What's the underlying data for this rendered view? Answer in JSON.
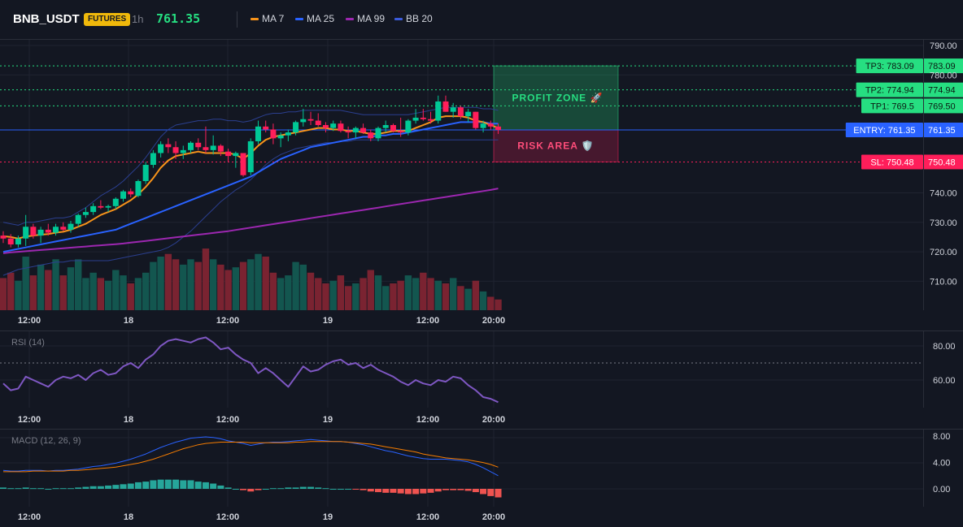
{
  "header": {
    "symbol": "BNB_USDT",
    "badge": "FUTURES",
    "timeframe": "1h",
    "price": "761.35",
    "legend": [
      {
        "label": "MA 7",
        "color": "#f7931a"
      },
      {
        "label": "MA 25",
        "color": "#2962ff"
      },
      {
        "label": "MA 99",
        "color": "#9c27b0"
      },
      {
        "label": "BB 20",
        "color": "#1e3a8a"
      }
    ]
  },
  "colors": {
    "up": "#00c896",
    "down": "#ff1e5a",
    "vol_up": "#13564f",
    "vol_down": "#7a2331",
    "rsi": "#7e57c2",
    "macd": "#2962ff",
    "signal": "#f57c00",
    "hist_up": "#26a69a",
    "hist_down": "#ef5350",
    "tp": "#26de81",
    "entry": "#2962ff",
    "sl": "#ff1e5a"
  },
  "chart_data": [
    {
      "type": "candlestick",
      "title": "",
      "x_ticks": [
        "12:00",
        "18",
        "12:00",
        "19",
        "12:00",
        "20:00"
      ],
      "y_ticks": [
        "790.00",
        "780.00",
        "740.00",
        "730.00",
        "720.00",
        "710.00"
      ],
      "ylim": [
        700,
        790
      ],
      "candles": [
        [
          725.5,
          727.0,
          723.0,
          724.5
        ],
        [
          724.5,
          726.0,
          721.5,
          722.5
        ],
        [
          722.5,
          725.5,
          721.5,
          724.5
        ],
        [
          724.5,
          732.5,
          722.0,
          728.5
        ],
        [
          728.5,
          729.5,
          724.5,
          725.5
        ],
        [
          725.5,
          728.5,
          723.0,
          727.5
        ],
        [
          727.5,
          729.5,
          725.5,
          726.5
        ],
        [
          726.5,
          729.5,
          725.5,
          728.5
        ],
        [
          728.5,
          730.0,
          727.0,
          727.5
        ],
        [
          727.5,
          730.5,
          726.5,
          729.5
        ],
        [
          729.5,
          733.0,
          728.5,
          732.5
        ],
        [
          732.5,
          735.0,
          731.5,
          733.5
        ],
        [
          733.5,
          736.5,
          732.5,
          735.5
        ],
        [
          735.5,
          737.5,
          734.5,
          735.0
        ],
        [
          735.0,
          736.0,
          733.5,
          735.5
        ],
        [
          735.5,
          738.5,
          734.5,
          738.0
        ],
        [
          738.0,
          741.0,
          737.0,
          740.5
        ],
        [
          740.5,
          741.5,
          738.5,
          739.5
        ],
        [
          739.0,
          744.5,
          738.5,
          744.0
        ],
        [
          744.0,
          750.5,
          743.0,
          749.5
        ],
        [
          749.5,
          754.5,
          748.5,
          753.5
        ],
        [
          753.5,
          757.5,
          752.0,
          756.5
        ],
        [
          756.5,
          758.5,
          753.5,
          755.5
        ],
        [
          755.5,
          757.5,
          751.5,
          753.5
        ],
        [
          753.5,
          756.0,
          751.5,
          754.5
        ],
        [
          754.5,
          757.5,
          753.5,
          757.0
        ],
        [
          757.0,
          758.5,
          754.5,
          755.5
        ],
        [
          755.5,
          762.5,
          753.5,
          754.5
        ],
        [
          754.5,
          759.5,
          753.0,
          756.0
        ],
        [
          756.0,
          756.5,
          752.5,
          754.0
        ],
        [
          754.0,
          755.0,
          750.5,
          752.5
        ],
        [
          752.5,
          754.0,
          748.5,
          753.5
        ],
        [
          753.5,
          753.5,
          745.5,
          746.0
        ],
        [
          747.0,
          758.5,
          746.0,
          757.5
        ],
        [
          757.5,
          764.5,
          756.5,
          762.5
        ],
        [
          762.5,
          764.5,
          760.5,
          761.5
        ],
        [
          761.5,
          763.5,
          756.5,
          758.5
        ],
        [
          758.5,
          760.5,
          755.5,
          759.5
        ],
        [
          759.5,
          761.5,
          757.5,
          760.5
        ],
        [
          760.5,
          764.5,
          759.5,
          764.0
        ],
        [
          764.0,
          768.5,
          762.5,
          765.0
        ],
        [
          765.0,
          767.5,
          763.0,
          764.5
        ],
        [
          764.5,
          767.0,
          762.5,
          763.0
        ],
        [
          763.0,
          764.0,
          760.5,
          762.0
        ],
        [
          762.0,
          764.5,
          761.0,
          763.5
        ],
        [
          763.5,
          764.5,
          760.5,
          761.0
        ],
        [
          761.0,
          762.5,
          758.5,
          760.5
        ],
        [
          760.5,
          762.5,
          758.5,
          762.0
        ],
        [
          762.0,
          763.5,
          760.0,
          760.5
        ],
        [
          760.5,
          761.5,
          757.5,
          758.5
        ],
        [
          758.5,
          762.5,
          757.5,
          762.0
        ],
        [
          762.0,
          764.5,
          760.5,
          763.0
        ],
        [
          763.0,
          763.5,
          760.5,
          761.0
        ],
        [
          761.0,
          765.5,
          759.0,
          760.5
        ],
        [
          760.5,
          765.0,
          759.5,
          764.5
        ],
        [
          764.5,
          768.5,
          763.5,
          765.5
        ],
        [
          765.5,
          768.5,
          764.5,
          765.0
        ],
        [
          765.0,
          767.5,
          763.5,
          764.5
        ],
        [
          764.5,
          773.0,
          763.5,
          771.0
        ],
        [
          771.0,
          773.0,
          767.5,
          767.5
        ],
        [
          767.5,
          770.5,
          765.5,
          769.0
        ],
        [
          769.0,
          769.5,
          765.0,
          766.0
        ],
        [
          766.0,
          768.5,
          764.0,
          767.5
        ],
        [
          767.5,
          767.5,
          761.5,
          762.0
        ],
        [
          762.0,
          764.5,
          760.5,
          763.5
        ],
        [
          763.5,
          764.5,
          761.5,
          762.5
        ],
        [
          762.5,
          763.5,
          760.0,
          761.35
        ]
      ],
      "ma7": [
        725.3,
        725.0,
        724.5,
        725.2,
        725.5,
        725.8,
        726.0,
        726.5,
        726.8,
        727.5,
        728.5,
        729.5,
        731.0,
        732.5,
        733.5,
        734.5,
        736.0,
        737.5,
        739.5,
        742.0,
        745.0,
        748.5,
        751.0,
        752.5,
        753.0,
        753.5,
        754.0,
        753.5,
        753.5,
        753.5,
        753.5,
        753.0,
        751.5,
        753.5,
        756.0,
        758.0,
        759.0,
        759.5,
        760.0,
        760.5,
        761.0,
        761.5,
        762.0,
        762.0,
        761.5,
        761.5,
        761.0,
        761.0,
        760.5,
        760.0,
        760.0,
        760.5,
        761.0,
        761.0,
        761.0,
        762.0,
        763.0,
        764.0,
        765.5,
        766.0,
        766.0,
        766.0,
        765.5,
        764.5,
        764.0,
        763.0,
        762.0
      ],
      "ma25": [
        720.0,
        720.5,
        721.0,
        721.5,
        722.0,
        722.5,
        723.0,
        723.5,
        724.0,
        724.5,
        725.0,
        725.5,
        726.0,
        726.5,
        727.0,
        727.5,
        728.5,
        729.5,
        730.5,
        731.5,
        732.5,
        733.5,
        734.5,
        735.5,
        736.5,
        737.5,
        738.5,
        739.5,
        740.5,
        741.5,
        742.5,
        743.5,
        744.5,
        745.5,
        747.0,
        748.5,
        750.0,
        751.5,
        752.5,
        753.5,
        754.5,
        755.5,
        756.0,
        756.5,
        757.0,
        757.5,
        758.0,
        758.5,
        759.0,
        759.0,
        759.5,
        759.5,
        760.0,
        760.0,
        760.5,
        761.0,
        761.5,
        762.0,
        762.5,
        763.0,
        763.5,
        764.0,
        764.0,
        764.0,
        764.0,
        763.5,
        763.5
      ],
      "ma99": [
        719.5,
        719.8,
        720.0,
        720.2,
        720.4,
        720.6,
        720.8,
        721.0,
        721.2,
        721.4,
        721.6,
        721.8,
        722.0,
        722.2,
        722.4,
        722.6,
        722.8,
        723.1,
        723.4,
        723.7,
        724.0,
        724.3,
        724.6,
        724.9,
        725.2,
        725.5,
        725.8,
        726.1,
        726.4,
        726.7,
        727.0,
        727.4,
        727.8,
        728.2,
        728.6,
        729.0,
        729.4,
        729.8,
        730.2,
        730.6,
        731.0,
        731.4,
        731.8,
        732.2,
        732.6,
        733.0,
        733.4,
        733.8,
        734.2,
        734.6,
        735.0,
        735.4,
        735.8,
        736.2,
        736.6,
        737.0,
        737.4,
        737.8,
        738.2,
        738.6,
        739.0,
        739.4,
        739.8,
        740.2,
        740.6,
        741.0,
        741.5
      ],
      "bb_upper": [
        730.0,
        729.5,
        729.0,
        730.0,
        730.0,
        730.5,
        731.0,
        731.5,
        731.5,
        732.0,
        733.5,
        735.0,
        737.0,
        739.0,
        740.5,
        742.0,
        744.0,
        746.5,
        749.0,
        752.0,
        755.5,
        759.0,
        761.5,
        763.0,
        763.5,
        764.0,
        764.5,
        764.5,
        765.0,
        765.0,
        764.5,
        764.5,
        764.0,
        764.5,
        765.5,
        766.5,
        767.0,
        767.0,
        767.5,
        767.5,
        768.0,
        768.0,
        768.0,
        768.0,
        768.0,
        768.0,
        767.5,
        767.0,
        766.5,
        766.5,
        766.5,
        766.5,
        766.5,
        766.5,
        766.5,
        767.0,
        767.5,
        768.0,
        768.5,
        769.0,
        769.0,
        769.0,
        769.0,
        769.0,
        768.5,
        768.5,
        768.0
      ],
      "bb_lower": [
        712.0,
        713.0,
        714.0,
        714.5,
        715.0,
        715.5,
        716.0,
        716.5,
        716.5,
        717.0,
        717.0,
        717.0,
        717.0,
        717.0,
        717.0,
        717.5,
        718.0,
        718.5,
        719.0,
        719.5,
        720.0,
        720.5,
        721.5,
        723.0,
        725.0,
        727.0,
        729.5,
        732.0,
        734.5,
        737.0,
        739.0,
        741.0,
        742.5,
        744.5,
        747.0,
        749.5,
        751.5,
        753.0,
        754.0,
        755.0,
        755.5,
        756.0,
        756.5,
        757.0,
        757.0,
        757.5,
        757.5,
        758.0,
        758.0,
        758.0,
        758.0,
        758.0,
        758.0,
        758.0,
        758.0,
        758.0,
        758.0,
        758.0,
        758.0,
        758.0,
        758.0,
        758.0,
        758.0,
        758.0,
        758.0,
        758.0,
        758.0
      ],
      "volume": [
        12,
        14,
        11,
        20,
        13,
        17,
        15,
        19,
        13,
        16,
        19,
        12,
        14,
        12,
        11,
        15,
        13,
        10,
        12,
        14,
        18,
        20,
        21,
        19,
        17,
        19,
        18,
        23,
        19,
        17,
        15,
        16,
        18,
        19,
        21,
        20,
        14,
        12,
        13,
        18,
        17,
        14,
        12,
        10,
        11,
        13,
        9,
        10,
        12,
        15,
        13,
        9,
        10,
        11,
        13,
        12,
        14,
        12,
        11,
        10,
        12,
        9,
        8,
        11,
        7,
        5,
        4
      ],
      "levels": [
        {
          "name": "tp3",
          "label": "TP3: 783.09",
          "value": 783.09,
          "price_label": "783.09"
        },
        {
          "name": "tp2",
          "label": "TP2: 774.94",
          "value": 774.94,
          "price_label": "774.94"
        },
        {
          "name": "tp1",
          "label": "TP1: 769.5",
          "value": 769.5,
          "price_label": "769.50"
        },
        {
          "name": "entry",
          "label": "ENTRY: 761.35",
          "value": 761.35,
          "price_label": "761.35"
        },
        {
          "name": "sl",
          "label": "SL: 750.48",
          "value": 750.48,
          "price_label": "750.48"
        }
      ],
      "zones": {
        "profit": "PROFIT ZONE 🚀",
        "risk": "RISK AREA 🛡️"
      }
    },
    {
      "type": "line",
      "title": "RSI (14)",
      "x_ticks": [
        "12:00",
        "18",
        "12:00",
        "19",
        "12:00",
        "20:00"
      ],
      "y_ticks": [
        "80.00",
        "60.00"
      ],
      "ylim": [
        44,
        90
      ],
      "values": [
        58,
        54,
        55,
        62,
        60,
        58,
        56,
        60,
        62,
        61,
        63,
        60,
        64,
        66,
        63,
        64,
        68,
        70,
        67,
        72,
        75,
        80,
        83,
        84,
        83,
        82,
        84,
        85,
        82,
        78,
        79,
        75,
        72,
        70,
        64,
        67,
        64,
        60,
        56,
        62,
        68,
        65,
        66,
        69,
        71,
        72,
        69,
        70,
        67,
        69,
        66,
        64,
        62,
        59,
        57,
        60,
        58,
        57,
        60,
        59,
        62,
        61,
        57,
        54,
        50,
        49,
        47
      ]
    },
    {
      "type": "line",
      "title": "MACD (12, 26, 9)",
      "x_ticks": [
        "12:00",
        "18",
        "12:00",
        "19",
        "12:00",
        "20:00"
      ],
      "y_ticks": [
        "8.00",
        "4.00",
        "0.00"
      ],
      "ylim": [
        -2,
        9
      ],
      "macd": [
        2.8,
        2.7,
        2.7,
        2.8,
        2.8,
        2.8,
        2.7,
        2.8,
        2.8,
        2.9,
        3.0,
        3.2,
        3.4,
        3.5,
        3.7,
        3.9,
        4.2,
        4.5,
        4.9,
        5.3,
        5.8,
        6.3,
        6.7,
        7.1,
        7.4,
        7.7,
        7.8,
        7.9,
        7.8,
        7.6,
        7.3,
        7.1,
        6.9,
        6.6,
        6.8,
        7.0,
        7.1,
        7.1,
        7.2,
        7.3,
        7.4,
        7.5,
        7.4,
        7.3,
        7.2,
        7.2,
        7.1,
        6.9,
        6.7,
        6.4,
        6.1,
        5.8,
        5.6,
        5.3,
        5.0,
        4.8,
        4.6,
        4.5,
        4.5,
        4.5,
        4.4,
        4.3,
        4.1,
        3.7,
        3.2,
        2.6,
        2.0
      ],
      "signal": [
        2.6,
        2.6,
        2.6,
        2.6,
        2.7,
        2.7,
        2.7,
        2.7,
        2.7,
        2.8,
        2.8,
        2.9,
        3.0,
        3.1,
        3.2,
        3.3,
        3.5,
        3.7,
        3.9,
        4.2,
        4.5,
        4.9,
        5.3,
        5.7,
        6.1,
        6.4,
        6.7,
        6.9,
        7.0,
        7.1,
        7.1,
        7.1,
        7.1,
        7.0,
        7.0,
        7.0,
        7.0,
        7.0,
        7.0,
        7.1,
        7.1,
        7.2,
        7.2,
        7.2,
        7.2,
        7.2,
        7.1,
        7.0,
        6.9,
        6.8,
        6.6,
        6.4,
        6.2,
        6.0,
        5.8,
        5.6,
        5.3,
        5.1,
        4.9,
        4.7,
        4.6,
        4.5,
        4.4,
        4.2,
        4.0,
        3.7,
        3.3
      ],
      "hist": [
        0.2,
        0.1,
        0.1,
        0.2,
        0.1,
        0.1,
        0.0,
        0.1,
        0.1,
        0.1,
        0.2,
        0.3,
        0.4,
        0.4,
        0.5,
        0.6,
        0.7,
        0.8,
        1.0,
        1.1,
        1.3,
        1.4,
        1.4,
        1.4,
        1.3,
        1.3,
        1.1,
        1.0,
        0.8,
        0.5,
        0.2,
        0.0,
        -0.2,
        -0.4,
        -0.2,
        0.0,
        0.1,
        0.1,
        0.2,
        0.2,
        0.3,
        0.3,
        0.2,
        0.1,
        0.0,
        0.0,
        0.0,
        -0.1,
        -0.2,
        -0.4,
        -0.5,
        -0.6,
        -0.6,
        -0.7,
        -0.8,
        -0.8,
        -0.7,
        -0.6,
        -0.4,
        -0.2,
        -0.2,
        -0.2,
        -0.3,
        -0.5,
        -0.8,
        -1.1,
        -1.3
      ]
    }
  ]
}
